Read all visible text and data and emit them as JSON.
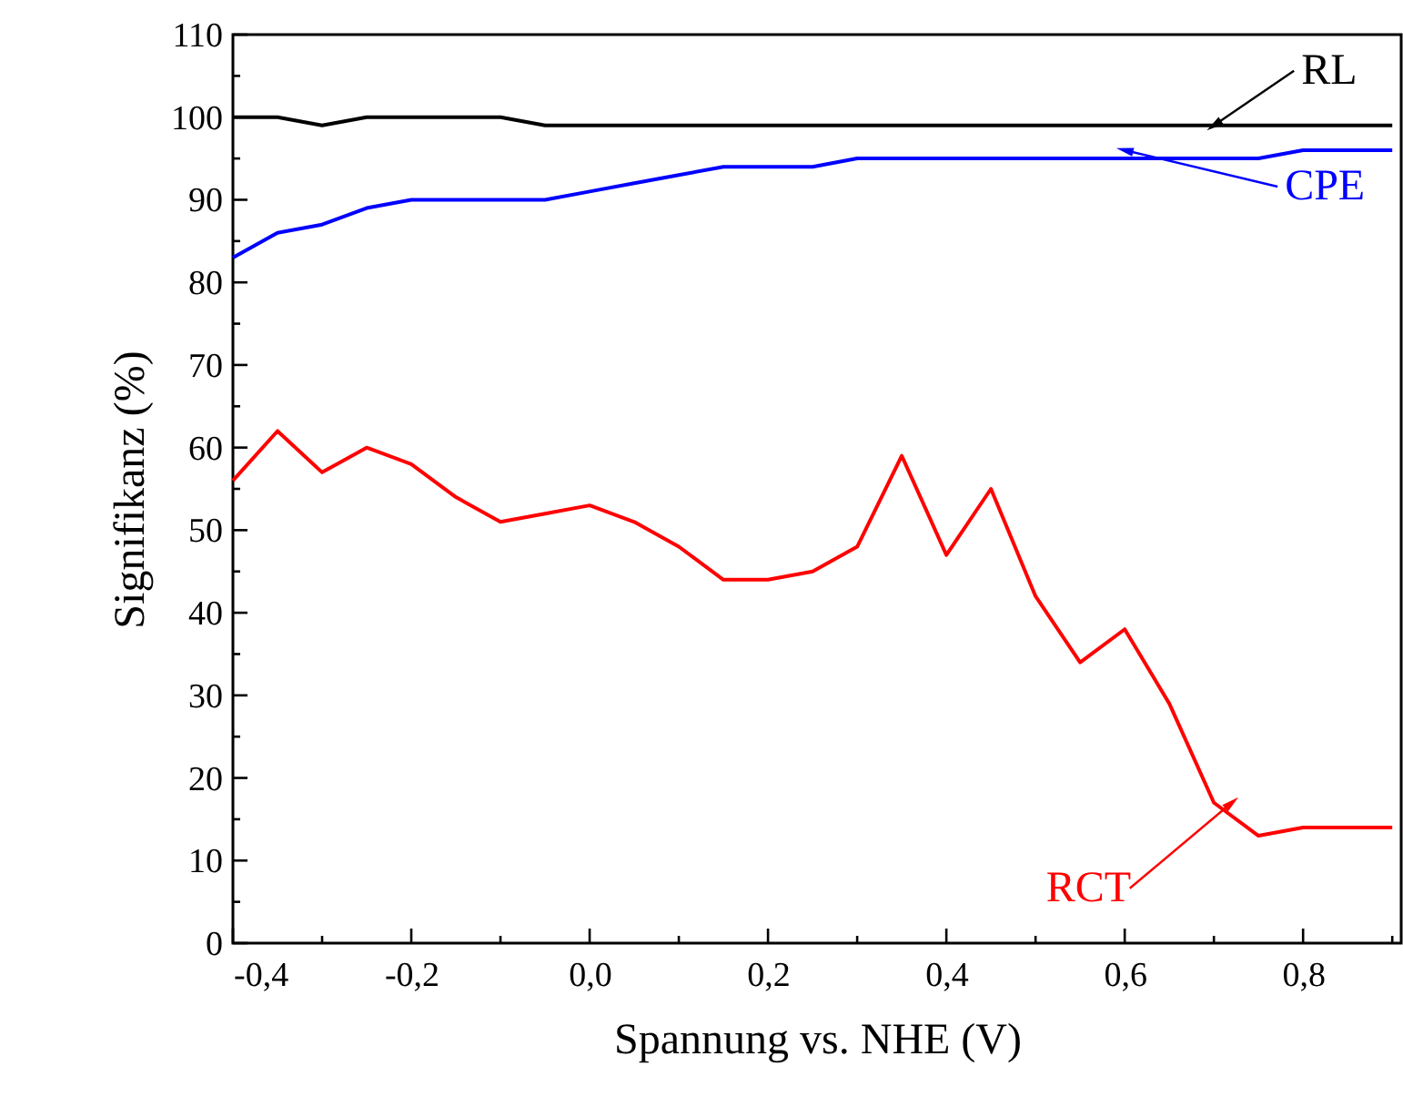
{
  "chart_data": {
    "type": "line",
    "xlabel": "Spannung vs. NHE (V)",
    "ylabel": "Signifikanz (%)",
    "x": [
      -0.4,
      -0.35,
      -0.3,
      -0.25,
      -0.2,
      -0.15,
      -0.1,
      -0.05,
      0,
      0.05,
      0.1,
      0.15,
      0.2,
      0.25,
      0.3,
      0.35,
      0.4,
      0.45,
      0.5,
      0.55,
      0.6,
      0.65,
      0.7,
      0.75,
      0.8,
      0.85,
      0.9
    ],
    "series": [
      {
        "color": "#000000",
        "values": [
          100,
          100,
          99,
          100,
          100,
          100,
          100,
          99,
          99,
          99,
          99,
          99,
          99,
          99,
          99,
          99,
          99,
          99,
          99,
          99,
          99,
          99,
          99,
          99,
          99,
          99,
          99
        ]
      },
      {
        "color": "#0000ff",
        "values": [
          83,
          86,
          87,
          89,
          90,
          90,
          90,
          90,
          91,
          92,
          93,
          94,
          94,
          94,
          95,
          95,
          95,
          95,
          95,
          95,
          95,
          95,
          95,
          95,
          96,
          96,
          96
        ]
      },
      {
        "color": "#ff0000",
        "values": [
          56,
          62,
          57,
          60,
          58,
          54,
          51,
          52,
          53,
          51,
          48,
          44,
          44,
          45,
          48,
          59,
          47,
          55,
          42,
          34,
          38,
          29,
          17,
          13,
          14,
          14,
          14
        ]
      }
    ],
    "annotations": [
      {
        "text": "RL",
        "x": 0.7,
        "y": 99
      },
      {
        "text": "CPE",
        "x": 0.6,
        "y": 96
      },
      {
        "text": "RCT",
        "x": 0.72,
        "y": 17
      }
    ],
    "xlim": [
      -0.4,
      0.91
    ],
    "ylim": [
      0,
      110
    ],
    "xticks": [
      {
        "value": -0.4,
        "label": "-0,4"
      },
      {
        "value": -0.3,
        "label": null
      },
      {
        "value": -0.2,
        "label": "-0,2"
      },
      {
        "value": -0.1,
        "label": null
      },
      {
        "value": 0,
        "label": "0,0"
      },
      {
        "value": 0.1,
        "label": null
      },
      {
        "value": 0.2,
        "label": "0,2"
      },
      {
        "value": 0.3,
        "label": null
      },
      {
        "value": 0.4,
        "label": "0,4"
      },
      {
        "value": 0.5,
        "label": null
      },
      {
        "value": 0.6,
        "label": "0,6"
      },
      {
        "value": 0.7,
        "label": null
      },
      {
        "value": 0.8,
        "label": "0,8"
      },
      {
        "value": 0.9,
        "label": null
      }
    ],
    "yticks": [
      0,
      {
        "value": 5,
        "label": null
      },
      10,
      {
        "value": 15,
        "label": null
      },
      20,
      {
        "value": 25,
        "label": null
      },
      30,
      {
        "value": 35,
        "label": null
      },
      40,
      {
        "value": 45,
        "label": null
      },
      50,
      {
        "value": 55,
        "label": null
      },
      60,
      {
        "value": 65,
        "label": null
      },
      70,
      {
        "value": 75,
        "label": null
      },
      80,
      {
        "value": 85,
        "label": null
      },
      90,
      {
        "value": 95,
        "label": null
      },
      100,
      {
        "value": 105,
        "label": null
      },
      110
    ],
    "grid": false,
    "marker": "none",
    "line_style": "solid"
  }
}
